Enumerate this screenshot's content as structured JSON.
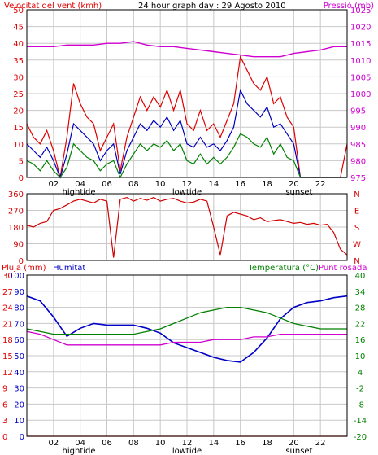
{
  "colors": {
    "wind_max": "#e00000",
    "wind_avg": "#0000c0",
    "wind_min": "#008000",
    "pressure": "#d000d0",
    "direction": "#d00000",
    "humidity": "#0000c8",
    "temperature": "#008000",
    "dewpoint": "#d000d0",
    "rain": "#e00000",
    "grid": "#c8c8c8"
  },
  "chart_data": [
    {
      "id": "wind",
      "type": "line",
      "title": "24 hour graph day : 29 Agosto 2010",
      "ylabel_left": "Velocitat del vent (kmh)",
      "ylabel_right": "Pressió (mb)",
      "x_range": [
        0,
        24
      ],
      "x_ticks": [
        "02",
        "04",
        "06",
        "08",
        "10",
        "12",
        "14",
        "16",
        "18",
        "20",
        "22"
      ],
      "x_annotations": [
        {
          "x": 3.9,
          "label": "hightide"
        },
        {
          "x": 12.0,
          "label": "lowtide"
        },
        {
          "x": 20.4,
          "label": "sunset"
        }
      ],
      "y_left_range": [
        0,
        50
      ],
      "y_left_ticks": [
        "0",
        "5",
        "10",
        "15",
        "20",
        "25",
        "30",
        "35",
        "40",
        "45",
        "50"
      ],
      "y_right_range": [
        975,
        1025
      ],
      "y_right_ticks": [
        "975",
        "980",
        "985",
        "990",
        "995",
        "1000",
        "1005",
        "1010",
        "1015",
        "1020",
        "1025"
      ],
      "grid": true,
      "series": [
        {
          "key": "wind_max",
          "axis": "left",
          "x": [
            0,
            0.5,
            1,
            1.5,
            2,
            2.5,
            3,
            3.5,
            4,
            4.5,
            5,
            5.5,
            6,
            6.5,
            7,
            7.5,
            8,
            8.5,
            9,
            9.5,
            10,
            10.5,
            11,
            11.5,
            12,
            12.5,
            13,
            13.5,
            14,
            14.5,
            15,
            15.5,
            16,
            16.5,
            17,
            17.5,
            18,
            18.5,
            19,
            19.5,
            20,
            20.5,
            21,
            21.5,
            22,
            22.5,
            23,
            23.5,
            24
          ],
          "y": [
            16,
            12,
            10,
            14,
            8,
            0,
            12,
            28,
            22,
            18,
            16,
            8,
            12,
            16,
            2,
            12,
            18,
            24,
            20,
            24,
            21,
            26,
            20,
            26,
            16,
            14,
            20,
            14,
            16,
            12,
            17,
            22,
            36,
            32,
            28,
            26,
            30,
            22,
            24,
            18,
            15,
            0,
            0,
            0,
            0,
            0,
            0,
            0,
            10
          ]
        },
        {
          "key": "wind_avg",
          "axis": "left",
          "x": [
            0,
            0.5,
            1,
            1.5,
            2,
            2.5,
            3,
            3.5,
            4,
            4.5,
            5,
            5.5,
            6,
            6.5,
            7,
            7.5,
            8,
            8.5,
            9,
            9.5,
            10,
            10.5,
            11,
            11.5,
            12,
            12.5,
            13,
            13.5,
            14,
            14.5,
            15,
            15.5,
            16,
            16.5,
            17,
            17.5,
            18,
            18.5,
            19,
            19.5,
            20,
            20.5,
            21,
            21.5,
            22,
            22.5,
            23,
            23.5,
            24
          ],
          "y": [
            10,
            8,
            6,
            9,
            5,
            0,
            7,
            16,
            14,
            12,
            10,
            5,
            8,
            10,
            1,
            8,
            12,
            16,
            14,
            17,
            15,
            18,
            14,
            17,
            10,
            9,
            12,
            9,
            10,
            8,
            11,
            15,
            26,
            22,
            20,
            18,
            21,
            15,
            16,
            13,
            10,
            0,
            0,
            0,
            0,
            0,
            0,
            0,
            0
          ]
        },
        {
          "key": "wind_min",
          "axis": "left",
          "x": [
            0,
            0.5,
            1,
            1.5,
            2,
            2.5,
            3,
            3.5,
            4,
            4.5,
            5,
            5.5,
            6,
            6.5,
            7,
            7.5,
            8,
            8.5,
            9,
            9.5,
            10,
            10.5,
            11,
            11.5,
            12,
            12.5,
            13,
            13.5,
            14,
            14.5,
            15,
            15.5,
            16,
            16.5,
            17,
            17.5,
            18,
            18.5,
            19,
            19.5,
            20,
            20.5,
            21,
            21.5,
            22,
            22.5,
            23,
            23.5,
            24
          ],
          "y": [
            5,
            4,
            2,
            5,
            2,
            0,
            3,
            10,
            8,
            6,
            5,
            2,
            4,
            5,
            0,
            4,
            7,
            10,
            8,
            10,
            9,
            11,
            8,
            10,
            5,
            4,
            7,
            4,
            6,
            4,
            6,
            9,
            13,
            12,
            10,
            9,
            12,
            7,
            10,
            6,
            5,
            0,
            0,
            0,
            0,
            0,
            0,
            0,
            0
          ]
        },
        {
          "key": "pressure",
          "axis": "right",
          "x": [
            0,
            1,
            2,
            3,
            4,
            5,
            6,
            7,
            8,
            9,
            10,
            11,
            12,
            13,
            14,
            15,
            16,
            17,
            18,
            19,
            20,
            21,
            22,
            23,
            24
          ],
          "y": [
            1014,
            1014,
            1014,
            1014.5,
            1014.5,
            1014.5,
            1015,
            1015,
            1015.5,
            1014.5,
            1014,
            1014,
            1013.5,
            1013,
            1012.5,
            1012,
            1011.5,
            1011,
            1011,
            1011,
            1012,
            1012.5,
            1013,
            1014,
            1014
          ]
        }
      ]
    },
    {
      "id": "direction",
      "type": "line",
      "ylabel_right_ticks": [
        "N",
        "W",
        "S",
        "E",
        "N"
      ],
      "x_range": [
        0,
        24
      ],
      "y_range": [
        0,
        360
      ],
      "y_ticks": [
        "0",
        "90",
        "180",
        "270",
        "360"
      ],
      "grid": true,
      "series": [
        {
          "key": "direction",
          "x": [
            0,
            0.5,
            1,
            1.5,
            2,
            2.5,
            3,
            3.5,
            4,
            4.5,
            5,
            5.5,
            6,
            6.5,
            7,
            7.5,
            8,
            8.5,
            9,
            9.5,
            10,
            10.5,
            11,
            11.5,
            12,
            12.5,
            13,
            13.5,
            14,
            14.5,
            15,
            15.5,
            16,
            16.5,
            17,
            17.5,
            18,
            18.5,
            19,
            19.5,
            20,
            20.5,
            21,
            21.5,
            22,
            22.5,
            23,
            23.5,
            24
          ],
          "y": [
            190,
            180,
            200,
            210,
            270,
            280,
            300,
            320,
            330,
            320,
            310,
            330,
            320,
            15,
            330,
            340,
            320,
            335,
            325,
            340,
            320,
            330,
            335,
            320,
            310,
            315,
            330,
            320,
            180,
            30,
            240,
            260,
            250,
            240,
            220,
            230,
            210,
            215,
            220,
            210,
            200,
            205,
            195,
            200,
            190,
            195,
            150,
            60,
            30
          ]
        }
      ]
    },
    {
      "id": "climate",
      "type": "line",
      "ylabel_rain": "Pluja (mm)",
      "ylabel_humidity": "Humitat",
      "ylabel_right": "Temperatura (°C)",
      "ylabel_dewpoint": "Punt rosada",
      "x_range": [
        0,
        24
      ],
      "x_ticks": [
        "02",
        "04",
        "06",
        "08",
        "10",
        "12",
        "14",
        "16",
        "18",
        "20",
        "22"
      ],
      "x_annotations": [
        {
          "x": 3.9,
          "label": "hightide"
        },
        {
          "x": 12.0,
          "label": "lowtide"
        },
        {
          "x": 20.4,
          "label": "sunset"
        }
      ],
      "rain_range": [
        0,
        30
      ],
      "rain_ticks": [
        "0",
        "3",
        "6",
        "9",
        "12",
        "15",
        "18",
        "21",
        "24",
        "27",
        "30"
      ],
      "humidity_range": [
        0,
        100
      ],
      "humidity_ticks": [
        "0",
        "10",
        "20",
        "30",
        "40",
        "50",
        "60",
        "70",
        "80",
        "90",
        "100"
      ],
      "temp_range": [
        -20,
        40
      ],
      "temp_ticks": [
        "-20",
        "-14",
        "-8",
        "-2",
        "4",
        "10",
        "16",
        "22",
        "28",
        "34",
        "40"
      ],
      "grid": true,
      "series": [
        {
          "key": "humidity",
          "axis": "humidity",
          "x": [
            0,
            1,
            2,
            3,
            4,
            5,
            6,
            7,
            8,
            9,
            10,
            11,
            12,
            13,
            14,
            15,
            16,
            17,
            18,
            19,
            20,
            21,
            22,
            23,
            24
          ],
          "y": [
            87,
            84,
            74,
            62,
            67,
            70,
            69,
            69,
            69,
            67,
            64,
            58,
            55,
            52,
            49,
            47,
            46,
            52,
            61,
            73,
            80,
            83,
            84,
            86,
            87
          ]
        },
        {
          "key": "temperature",
          "axis": "temp",
          "x": [
            0,
            1,
            2,
            3,
            4,
            5,
            6,
            7,
            8,
            9,
            10,
            11,
            12,
            13,
            14,
            15,
            16,
            17,
            18,
            19,
            20,
            21,
            22,
            23,
            24
          ],
          "y": [
            20,
            19,
            18,
            18,
            18,
            18,
            18,
            18,
            18,
            19,
            20,
            22,
            24,
            26,
            27,
            28,
            28,
            27,
            26,
            24,
            22,
            21,
            20,
            20,
            20
          ]
        },
        {
          "key": "dewpoint",
          "axis": "temp",
          "x": [
            0,
            1,
            2,
            3,
            4,
            5,
            6,
            7,
            8,
            9,
            10,
            11,
            12,
            13,
            14,
            15,
            16,
            17,
            18,
            19,
            20,
            21,
            22,
            23,
            24
          ],
          "y": [
            19,
            18,
            16,
            14,
            14,
            14,
            14,
            14,
            14,
            14,
            14,
            15,
            15,
            15,
            16,
            16,
            16,
            17,
            17,
            18,
            18,
            18,
            18,
            18,
            18
          ]
        },
        {
          "key": "rain",
          "axis": "rain",
          "x": [
            0,
            24
          ],
          "y": [
            0,
            0
          ]
        }
      ]
    }
  ]
}
